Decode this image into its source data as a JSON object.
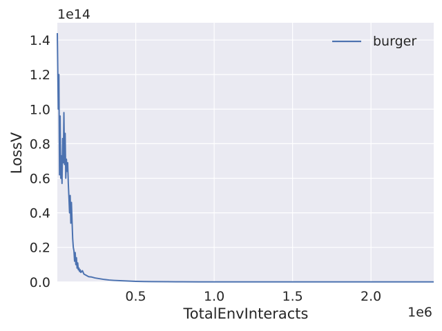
{
  "chart_data": {
    "type": "line",
    "title": "",
    "xlabel": "TotalEnvInteracts",
    "ylabel": "LossV",
    "x_offset_label": "1e6",
    "y_offset_label": "1e14",
    "xlim": [
      0,
      2400000
    ],
    "ylim": [
      -75000000000.0,
      150000000000000.0
    ],
    "x_ticks": [
      500000,
      1000000,
      1500000,
      2000000
    ],
    "x_tick_labels": [
      "0.5",
      "1.0",
      "1.5",
      "2.0"
    ],
    "y_ticks": [
      0,
      20000000000000,
      40000000000000,
      60000000000000,
      80000000000000,
      100000000000000,
      120000000000000,
      140000000000000
    ],
    "y_tick_labels": [
      "0.0",
      "0.2",
      "0.4",
      "0.6",
      "0.8",
      "1.0",
      "1.2",
      "1.4"
    ],
    "grid": true,
    "legend_position": "top-right",
    "series": [
      {
        "name": "burger",
        "color": "#4c72b0",
        "x": [
          0,
          6000,
          10000,
          14000,
          18000,
          22000,
          26000,
          30000,
          34000,
          38000,
          42000,
          46000,
          50000,
          54000,
          58000,
          62000,
          66000,
          70000,
          74000,
          78000,
          82000,
          86000,
          90000,
          94000,
          98000,
          102000,
          106000,
          110000,
          114000,
          118000,
          122000,
          126000,
          130000,
          134000,
          138000,
          142000,
          146000,
          150000,
          160000,
          170000,
          180000,
          190000,
          200000,
          220000,
          240000,
          260000,
          280000,
          300000,
          330000,
          360000,
          400000,
          450000,
          500000,
          550000,
          600000,
          700000,
          800000,
          900000,
          1000000,
          1200000,
          1500000,
          1800000,
          2100000,
          2400000
        ],
        "y": [
          144000000000000,
          100000000000000,
          120000000000000,
          62000000000000,
          96000000000000,
          60000000000000,
          73000000000000,
          57000000000000,
          83000000000000,
          69000000000000,
          98000000000000,
          68000000000000,
          86000000000000,
          60000000000000,
          71000000000000,
          64000000000000,
          69000000000000,
          57000000000000,
          49000000000000,
          40000000000000,
          50000000000000,
          34000000000000,
          46000000000000,
          35000000000000,
          25000000000000,
          20000000000000,
          18000000000000,
          12000000000000,
          17000000000000,
          10000000000000,
          14000000000000,
          8000000000000,
          11000000000000,
          7000000000000,
          8000000000000,
          6000000000000,
          7000000000000,
          5500000000000,
          6500000000000,
          4500000000000,
          4000000000000,
          3500000000000,
          3000000000000,
          2800000000000,
          2300000000000,
          2000000000000,
          1700000000000,
          1400000000000,
          1100000000000,
          900000000000,
          700000000000,
          500000000000,
          350000000000,
          250000000000,
          180000000000,
          120000000000,
          80000000000,
          50000000000,
          40000000000,
          30000000000,
          20000000000,
          15000000000,
          10000000000,
          10000000000
        ]
      }
    ]
  }
}
